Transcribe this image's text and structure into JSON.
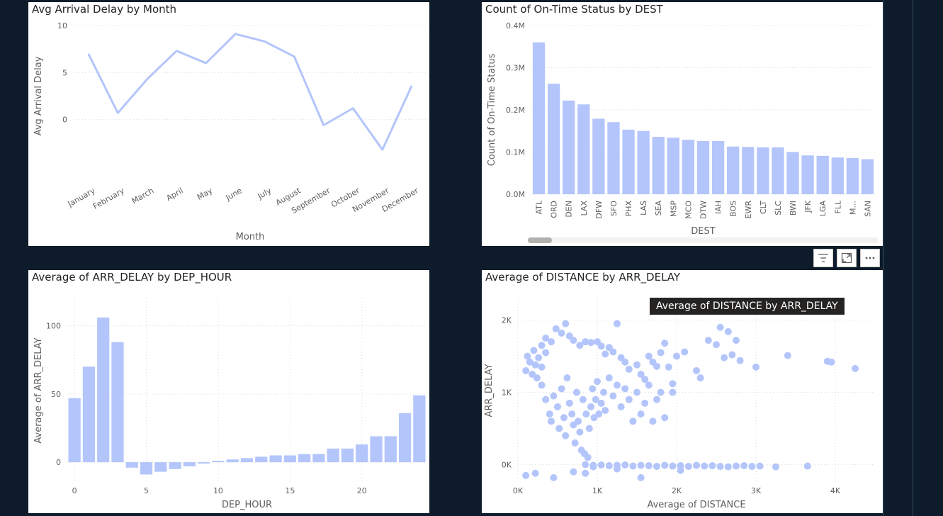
{
  "panels": {
    "line_title": "Avg Arrival Delay by Month",
    "dest_title": "Count of On-Time Status by DEST",
    "hour_title": "Average of ARR_DELAY by DEP_HOUR",
    "scatter_title": "Average of DISTANCE by ARR_DELAY"
  },
  "tooltip": {
    "text": "Average of DISTANCE by ARR_DELAY"
  },
  "toolbar": {
    "filter_icon": "filter-icon",
    "focus_icon": "focus-mode-icon",
    "more_icon": "more-options-icon"
  },
  "colors": {
    "series": "#b3c5fb",
    "background": "#0d1b2a",
    "grid": "#dcdcdc"
  },
  "chart_data": [
    {
      "type": "line",
      "title": "Avg Arrival Delay by Month",
      "xlabel": "Month",
      "ylabel": "Avg Arrival Delay",
      "categories": [
        "January",
        "February",
        "March",
        "April",
        "May",
        "June",
        "July",
        "August",
        "September",
        "October",
        "November",
        "December"
      ],
      "values": [
        7.0,
        0.7,
        4.3,
        7.3,
        6.0,
        9.1,
        8.3,
        6.7,
        -0.6,
        1.2,
        -3.2,
        3.6
      ],
      "ylim": [
        -5,
        10
      ],
      "yticks": [
        {
          "v": 0,
          "label": "0"
        },
        {
          "v": 5,
          "label": "5"
        },
        {
          "v": 10,
          "label": "10"
        }
      ],
      "grid": true
    },
    {
      "type": "bar",
      "title": "Count of On-Time Status by DEST",
      "xlabel": "DEST",
      "ylabel": "Count of On-Time Status",
      "categories": [
        "ATL",
        "ORD",
        "DEN",
        "LAX",
        "DFW",
        "SFO",
        "PHX",
        "LAS",
        "SEA",
        "MSP",
        "MCO",
        "DTW",
        "IAH",
        "BOS",
        "EWR",
        "CLT",
        "SLC",
        "BWI",
        "JFK",
        "LGA",
        "FLL",
        "M...",
        "SAN"
      ],
      "values": [
        360000,
        262000,
        222000,
        213000,
        179000,
        171000,
        153000,
        150000,
        136000,
        134000,
        129000,
        126000,
        126000,
        113000,
        112000,
        111000,
        111000,
        100000,
        92000,
        91000,
        87000,
        86000,
        83000
      ],
      "ylim": [
        0,
        400000
      ],
      "yticks": [
        {
          "v": 0,
          "label": "0.0M"
        },
        {
          "v": 100000,
          "label": "0.1M"
        },
        {
          "v": 200000,
          "label": "0.2M"
        },
        {
          "v": 300000,
          "label": "0.3M"
        },
        {
          "v": 400000,
          "label": "0.4M"
        }
      ],
      "grid": true
    },
    {
      "type": "bar",
      "title": "Average of ARR_DELAY by DEP_HOUR",
      "xlabel": "DEP_HOUR",
      "ylabel": "Average of ARR_DELAY",
      "x": [
        0,
        1,
        2,
        3,
        4,
        5,
        6,
        7,
        8,
        9,
        10,
        11,
        12,
        13,
        14,
        15,
        16,
        17,
        18,
        19,
        20,
        21,
        22,
        23,
        24
      ],
      "values": [
        47,
        70,
        106,
        88,
        -4,
        -9,
        -7,
        -5,
        -3,
        -1,
        1,
        2,
        3,
        4,
        5,
        5,
        6,
        6,
        10,
        10,
        13,
        19,
        19,
        36,
        49
      ],
      "ylim": [
        -15,
        120
      ],
      "xticks": [
        {
          "v": 0,
          "label": "0"
        },
        {
          "v": 5,
          "label": "5"
        },
        {
          "v": 10,
          "label": "10"
        },
        {
          "v": 15,
          "label": "15"
        },
        {
          "v": 20,
          "label": "20"
        }
      ],
      "yticks": [
        {
          "v": 0,
          "label": "0"
        },
        {
          "v": 50,
          "label": "50"
        },
        {
          "v": 100,
          "label": "100"
        }
      ],
      "grid": true
    },
    {
      "type": "scatter",
      "title": "Average of DISTANCE by ARR_DELAY",
      "xlabel": "Average of DISTANCE",
      "ylabel": "ARR_DELAY",
      "xlim": [
        0,
        4500
      ],
      "ylim": [
        -250,
        2300
      ],
      "xticks": [
        {
          "v": 0,
          "label": "0K"
        },
        {
          "v": 1000,
          "label": "1K"
        },
        {
          "v": 2000,
          "label": "2K"
        },
        {
          "v": 3000,
          "label": "3K"
        },
        {
          "v": 4000,
          "label": "4K"
        }
      ],
      "yticks": [
        {
          "v": 0,
          "label": "0K"
        },
        {
          "v": 1000,
          "label": "1K"
        },
        {
          "v": 2000,
          "label": "2K"
        }
      ],
      "points": [
        [
          100,
          1300
        ],
        [
          120,
          1500
        ],
        [
          150,
          1420
        ],
        [
          200,
          1580
        ],
        [
          220,
          1380
        ],
        [
          260,
          1480
        ],
        [
          300,
          1350
        ],
        [
          350,
          1550
        ],
        [
          180,
          1250
        ],
        [
          240,
          1200
        ],
        [
          300,
          1650
        ],
        [
          350,
          1750
        ],
        [
          420,
          1700
        ],
        [
          480,
          1880
        ],
        [
          550,
          1820
        ],
        [
          600,
          1950
        ],
        [
          650,
          1780
        ],
        [
          700,
          1720
        ],
        [
          780,
          1650
        ],
        [
          850,
          1700
        ],
        [
          920,
          1690
        ],
        [
          1000,
          1700
        ],
        [
          1050,
          1640
        ],
        [
          1100,
          1530
        ],
        [
          1150,
          1620
        ],
        [
          1200,
          1560
        ],
        [
          1250,
          1950
        ],
        [
          1300,
          1480
        ],
        [
          1350,
          1420
        ],
        [
          1400,
          1320
        ],
        [
          1500,
          1380
        ],
        [
          1550,
          1250
        ],
        [
          1600,
          1180
        ],
        [
          1650,
          1500
        ],
        [
          1700,
          1420
        ],
        [
          1750,
          1360
        ],
        [
          1800,
          1550
        ],
        [
          1850,
          1680
        ],
        [
          1900,
          1350
        ],
        [
          1950,
          1120
        ],
        [
          2000,
          1500
        ],
        [
          2100,
          1560
        ],
        [
          2250,
          1300
        ],
        [
          2300,
          1200
        ],
        [
          2400,
          1720
        ],
        [
          2500,
          1660
        ],
        [
          2550,
          1900
        ],
        [
          2600,
          1480
        ],
        [
          2650,
          1840
        ],
        [
          2700,
          1520
        ],
        [
          2750,
          1720
        ],
        [
          2800,
          1440
        ],
        [
          3000,
          1350
        ],
        [
          3400,
          1510
        ],
        [
          3900,
          1430
        ],
        [
          3950,
          1420
        ],
        [
          4250,
          1330
        ],
        [
          300,
          1100
        ],
        [
          350,
          900
        ],
        [
          400,
          700
        ],
        [
          420,
          600
        ],
        [
          450,
          950
        ],
        [
          500,
          800
        ],
        [
          520,
          500
        ],
        [
          550,
          1050
        ],
        [
          580,
          650
        ],
        [
          600,
          400
        ],
        [
          620,
          1200
        ],
        [
          650,
          850
        ],
        [
          680,
          700
        ],
        [
          700,
          550
        ],
        [
          720,
          300
        ],
        [
          740,
          1000
        ],
        [
          760,
          600
        ],
        [
          780,
          450
        ],
        [
          800,
          200
        ],
        [
          820,
          900
        ],
        [
          840,
          150
        ],
        [
          860,
          700
        ],
        [
          880,
          100
        ],
        [
          900,
          500
        ],
        [
          920,
          800
        ],
        [
          940,
          1050
        ],
        [
          960,
          650
        ],
        [
          980,
          900
        ],
        [
          1000,
          1150
        ],
        [
          1020,
          700
        ],
        [
          1050,
          850
        ],
        [
          1080,
          1000
        ],
        [
          1100,
          750
        ],
        [
          1150,
          1200
        ],
        [
          1200,
          950
        ],
        [
          1250,
          1100
        ],
        [
          1300,
          800
        ],
        [
          1350,
          1050
        ],
        [
          1400,
          900
        ],
        [
          1450,
          600
        ],
        [
          1500,
          1000
        ],
        [
          1550,
          700
        ],
        [
          1600,
          850
        ],
        [
          1650,
          1100
        ],
        [
          1700,
          600
        ],
        [
          1750,
          900
        ],
        [
          1800,
          1000
        ],
        [
          1850,
          650
        ],
        [
          1950,
          1000
        ],
        [
          850,
          0
        ],
        [
          950,
          -10
        ],
        [
          1050,
          -5
        ],
        [
          1150,
          -15
        ],
        [
          1250,
          -10
        ],
        [
          1350,
          -5
        ],
        [
          1450,
          -20
        ],
        [
          1550,
          -10
        ],
        [
          1650,
          -15
        ],
        [
          1750,
          -25
        ],
        [
          1850,
          -10
        ],
        [
          1950,
          -20
        ],
        [
          2050,
          -15
        ],
        [
          2150,
          -25
        ],
        [
          2250,
          -10
        ],
        [
          2350,
          -20
        ],
        [
          2450,
          -15
        ],
        [
          2550,
          -25
        ],
        [
          2650,
          -30
        ],
        [
          2750,
          -20
        ],
        [
          2850,
          -15
        ],
        [
          2950,
          -25
        ],
        [
          3050,
          -20
        ],
        [
          3250,
          -30
        ],
        [
          3650,
          -20
        ],
        [
          1550,
          -180
        ],
        [
          850,
          -120
        ],
        [
          1250,
          -60
        ],
        [
          950,
          -30
        ],
        [
          2050,
          -80
        ],
        [
          100,
          -150
        ],
        [
          220,
          -120
        ],
        [
          450,
          -180
        ],
        [
          700,
          -100
        ]
      ],
      "grid": true
    }
  ]
}
